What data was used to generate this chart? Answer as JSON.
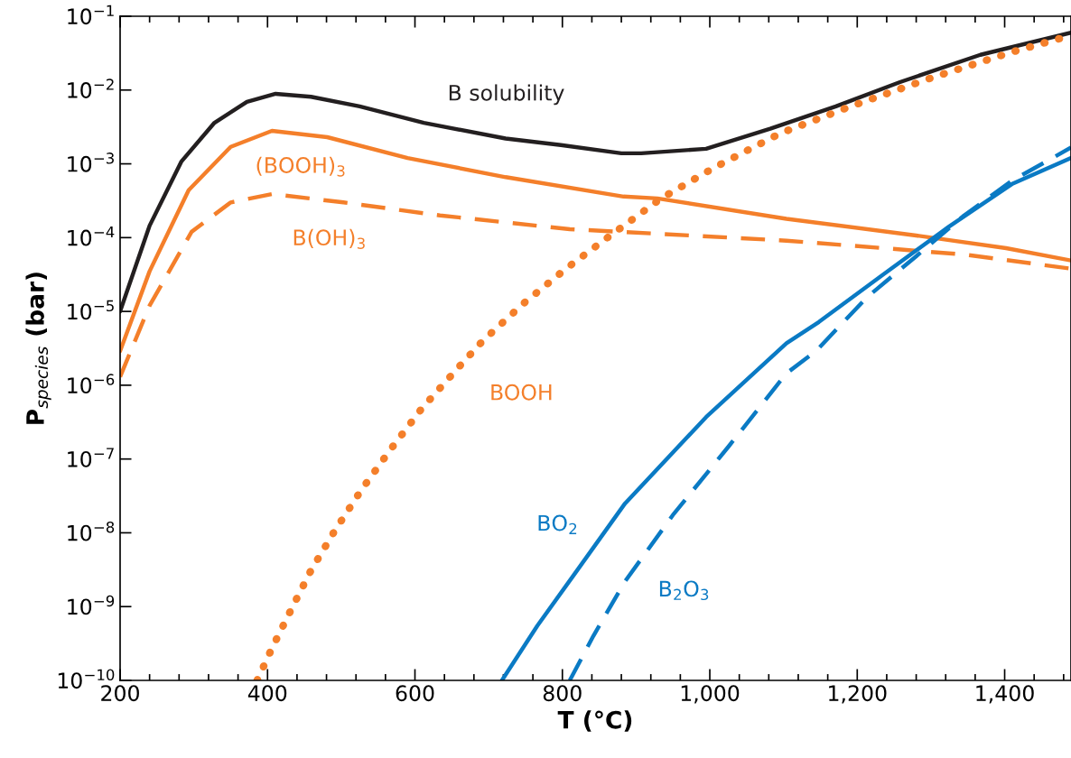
{
  "chart_data": {
    "type": "line",
    "log": "y",
    "grid": false,
    "marker": "none",
    "xlabel": "T (°C)",
    "ylabel": "P$_{species}$ (bar)",
    "xlim": [
      200,
      1490
    ],
    "ylim": [
      1e-10,
      0.1
    ],
    "xticks": [
      200,
      400,
      600,
      800,
      {
        "value": 1000,
        "label": "1,000"
      },
      {
        "value": 1200,
        "label": "1,200"
      },
      {
        "value": 1400,
        "label": "1,400"
      }
    ],
    "yticks": [
      {
        "value": 1e-10,
        "label": "10$^{−10}$"
      },
      {
        "value": 1e-09,
        "label": "10$^{−9}$"
      },
      {
        "value": 1e-08,
        "label": "10$^{−8}$"
      },
      {
        "value": 1e-07,
        "label": "10$^{−7}$"
      },
      {
        "value": 1e-06,
        "label": "10$^{−6}$"
      },
      {
        "value": 1e-05,
        "label": "10$^{−5}$"
      },
      {
        "value": 0.0001,
        "label": "10$^{−4}$"
      },
      {
        "value": 0.001,
        "label": "10$^{−3}$"
      },
      {
        "value": 0.01,
        "label": "10$^{−2}$"
      },
      {
        "value": 0.1,
        "label": "10$^{−1}$"
      }
    ],
    "series": [
      {
        "name": "B solubility",
        "color": "#231f20",
        "line_style": "solid",
        "x": [
          200,
          240,
          283,
          328,
          372,
          411,
          459,
          525,
          612,
          723,
          798,
          880,
          907,
          995,
          1082,
          1171,
          1258,
          1367,
          1490
        ],
        "values": [
          1e-05,
          0.000145,
          0.00107,
          0.0036,
          0.0069,
          0.0089,
          0.0081,
          0.006,
          0.0036,
          0.0022,
          0.0018,
          0.00139,
          0.00139,
          0.0016,
          0.003,
          0.006,
          0.0128,
          0.03,
          0.06
        ]
      },
      {
        "name": "(BOOH)$_{3}$",
        "color": "#f47f2a",
        "line_style": "solid",
        "x": [
          200,
          240,
          293,
          350,
          406,
          481,
          590,
          723,
          883,
          929,
          1104,
          1280,
          1402,
          1490
        ],
        "values": [
          2.9e-06,
          3.5e-05,
          0.00044,
          0.0017,
          0.0028,
          0.0023,
          0.0012,
          0.00066,
          0.00036,
          0.00034,
          0.00018,
          0.000107,
          7.2e-05,
          4.9e-05
        ]
      },
      {
        "name": "B(OH)$_{3}$",
        "color": "#f47f2a",
        "line_style": "dashed",
        "x": [
          200,
          240,
          297,
          350,
          406,
          503,
          634,
          810,
          929,
          1104,
          1236,
          1345,
          1490
        ],
        "values": [
          1.3e-06,
          1.2e-05,
          0.00012,
          0.0003,
          0.00039,
          0.0003,
          0.0002,
          0.00013,
          0.000113,
          9.1e-05,
          7.2e-05,
          5.9e-05,
          3.8e-05
        ]
      },
      {
        "name": "BOOH",
        "color": "#f47f2a",
        "line_style": "dotted",
        "x": [
          386,
          405,
          432,
          459,
          492,
          528,
          567,
          609,
          658,
          692,
          748,
          805,
          860,
          934,
          1006,
          1096,
          1191,
          1302,
          1411,
          1490
        ],
        "values": [
          1e-10,
          2.6e-10,
          9.1e-10,
          3.1e-09,
          1.1e-08,
          3.9e-08,
          1.35e-07,
          4.8e-07,
          1.7e-06,
          4e-06,
          1.3e-05,
          3.8e-05,
          9.8e-05,
          0.00034,
          0.00089,
          0.0026,
          0.006,
          0.0148,
          0.033,
          0.055
        ]
      },
      {
        "name": "BO$_{2}$",
        "color": "#0a7ac4",
        "line_style": "solid",
        "x": [
          718,
          766,
          818,
          885,
          995,
          1104,
          1148,
          1236,
          1324,
          1411,
          1490
        ],
        "values": [
          1e-10,
          5.5e-10,
          2.9e-09,
          2.5e-08,
          3.7e-07,
          3.7e-06,
          7.2e-06,
          3.2e-05,
          0.00014,
          0.00054,
          0.0012
        ]
      },
      {
        "name": "B$_{2}$O$_{3}$",
        "color": "#0a7ac4",
        "line_style": "dashed",
        "x": [
          810,
          842,
          885,
          951,
          1026,
          1104,
          1144,
          1213,
          1280,
          1345,
          1411,
          1490
        ],
        "values": [
          1e-10,
          4e-10,
          2.2e-09,
          1.8e-08,
          1.5e-07,
          1.45e-06,
          2.9e-06,
          1.55e-05,
          5.6e-05,
          0.0002,
          0.0006,
          0.00166
        ]
      }
    ]
  }
}
